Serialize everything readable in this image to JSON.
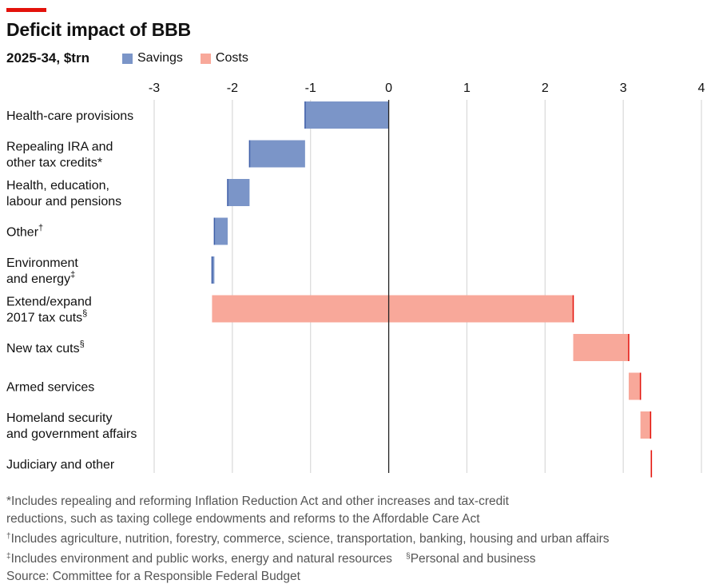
{
  "header": {
    "title": "Deficit impact of BBB",
    "subtitle": "2025-34, $trn"
  },
  "legend": {
    "savings_label": "Savings",
    "costs_label": "Costs"
  },
  "colors": {
    "accent": "#e3120b",
    "savings_fill": "#7b95c8",
    "savings_edge": "#3e5ea8",
    "costs_fill": "#f8a89a",
    "costs_edge": "#e3120b",
    "gridline": "#d9d9d9",
    "zero_line": "#222222"
  },
  "chart_data": {
    "type": "waterfall",
    "title": "Deficit impact of BBB",
    "subtitle": "2025-34, $trn",
    "xlim": [
      -3,
      4
    ],
    "xticks": [
      -3,
      -2,
      -1,
      0,
      1,
      2,
      3,
      4
    ],
    "legend": [
      "Savings",
      "Costs"
    ],
    "legend_position": "top",
    "grid": true,
    "categories": [
      {
        "lines": [
          "Health-care provisions"
        ],
        "sup": "",
        "type": "savings",
        "start": 0,
        "end": -1.07
      },
      {
        "lines": [
          "Repealing IRA and",
          "other tax credits*"
        ],
        "sup": "",
        "type": "savings",
        "start": -1.07,
        "end": -1.78
      },
      {
        "lines": [
          "Health, education,",
          "labour and pensions"
        ],
        "sup": "",
        "type": "savings",
        "start": -1.78,
        "end": -2.06
      },
      {
        "lines": [
          "Other"
        ],
        "sup": "†",
        "type": "savings",
        "start": -2.06,
        "end": -2.23
      },
      {
        "lines": [
          "Environment",
          "and energy"
        ],
        "sup": "‡",
        "type": "savings",
        "start": -2.23,
        "end": -2.26
      },
      {
        "lines": [
          "Extend/expand",
          "2017 tax cuts"
        ],
        "sup": "§",
        "type": "costs",
        "start": -2.26,
        "end": 2.36
      },
      {
        "lines": [
          "New tax cuts"
        ],
        "sup": "§",
        "type": "costs",
        "start": 2.36,
        "end": 3.07
      },
      {
        "lines": [
          "Armed services"
        ],
        "sup": "",
        "type": "costs",
        "start": 3.07,
        "end": 3.22
      },
      {
        "lines": [
          "Homeland security",
          "and government affairs"
        ],
        "sup": "",
        "type": "costs",
        "start": 3.22,
        "end": 3.35
      },
      {
        "lines": [
          "Judiciary and other"
        ],
        "sup": "",
        "type": "costs",
        "start": 3.35,
        "end": 3.36
      }
    ]
  },
  "footnotes": {
    "ira_1": "*Includes repealing and reforming Inflation Reduction Act and other increases and tax-credit",
    "ira_2": "reductions, such as taxing college endowments and reforms to the Affordable Care Act",
    "dagger_mark": "†",
    "dagger_text": "Includes agriculture, nutrition, forestry, commerce, science, transportation, banking, housing and urban affairs",
    "ddagger_mark": "‡",
    "ddagger_text": "Includes environment and public works, energy and natural resources",
    "section_mark": "§",
    "section_text": "Personal and business",
    "source": "Source: Committee for a Responsible Federal Budget"
  }
}
